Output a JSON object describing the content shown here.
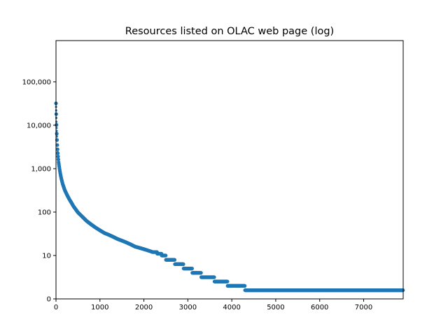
{
  "chart_data": {
    "type": "scatter",
    "title": "Resources listed on OLAC web page (log)",
    "xlabel": "",
    "ylabel": "",
    "xlim": [
      0,
      7900
    ],
    "y_scale": "symlog",
    "xticks": [
      0,
      1000,
      2000,
      3000,
      4000,
      5000,
      6000,
      7000
    ],
    "xtick_labels": [
      "0",
      "1000",
      "2000",
      "3000",
      "4000",
      "5000",
      "6000",
      "7000"
    ],
    "yticks": [
      0,
      10,
      100,
      1000,
      10000,
      100000
    ],
    "ytick_labels": [
      "0",
      "10",
      "100",
      "1,000",
      "10,000",
      "100,000"
    ],
    "grid": false,
    "series": [
      {
        "color": "#1f77b4",
        "points": [
          [
            0,
            32000
          ],
          [
            5,
            20000
          ],
          [
            10,
            12000
          ],
          [
            15,
            8000
          ],
          [
            20,
            5500
          ],
          [
            30,
            3500
          ],
          [
            40,
            2400
          ],
          [
            50,
            1800
          ],
          [
            60,
            1400
          ],
          [
            80,
            1000
          ],
          [
            100,
            750
          ],
          [
            120,
            600
          ],
          [
            150,
            450
          ],
          [
            200,
            320
          ],
          [
            250,
            250
          ],
          [
            300,
            200
          ],
          [
            350,
            165
          ],
          [
            400,
            135
          ],
          [
            450,
            115
          ],
          [
            500,
            98
          ],
          [
            600,
            78
          ],
          [
            700,
            62
          ],
          [
            800,
            52
          ],
          [
            900,
            44
          ],
          [
            1000,
            38
          ],
          [
            1100,
            33
          ],
          [
            1200,
            30
          ],
          [
            1300,
            27
          ],
          [
            1400,
            24
          ],
          [
            1500,
            22
          ],
          [
            1600,
            20
          ],
          [
            1700,
            18
          ],
          [
            1800,
            16
          ],
          [
            1900,
            15
          ],
          [
            2000,
            14
          ],
          [
            2100,
            13
          ],
          [
            2200,
            12
          ],
          [
            2300,
            11
          ],
          [
            2400,
            10
          ],
          [
            2500,
            9
          ],
          [
            2700,
            8
          ],
          [
            2900,
            7
          ],
          [
            3100,
            6
          ],
          [
            3300,
            5
          ],
          [
            3600,
            4
          ],
          [
            3900,
            3
          ],
          [
            4300,
            2
          ],
          [
            7900,
            1
          ]
        ]
      }
    ]
  }
}
